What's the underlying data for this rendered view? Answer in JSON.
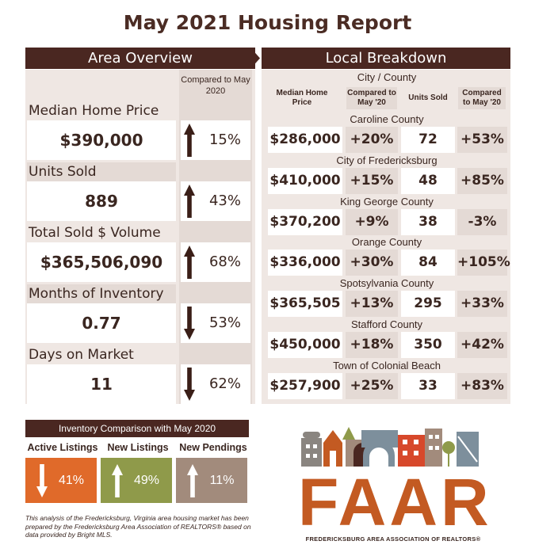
{
  "title": "May 2021 Housing Report",
  "colors": {
    "dark_brown": "#4a2721",
    "panel": "#efe7e3",
    "shade": "#e4dad5",
    "orange": "#e06a2a",
    "olive": "#8f9a4a",
    "taupe": "#a28b7c"
  },
  "area_overview": {
    "header": "Area Overview",
    "compared_label": "Compared to May 2020",
    "metrics": [
      {
        "label": "Median Home Price",
        "value": "$390,000",
        "direction": "up",
        "change": "15%"
      },
      {
        "label": "Units Sold",
        "value": "889",
        "direction": "up",
        "change": "43%"
      },
      {
        "label": "Total Sold $ Volume",
        "value": "$365,506,090",
        "direction": "up",
        "change": "68%"
      },
      {
        "label": "Months of Inventory",
        "value": "0.77",
        "direction": "down",
        "change": "53%"
      },
      {
        "label": "Days on Market",
        "value": "11",
        "direction": "down",
        "change": "62%"
      }
    ]
  },
  "local_breakdown": {
    "header": "Local Breakdown",
    "city_county": "City / County",
    "columns": [
      "Median Home Price",
      "Compared to May '20",
      "Units Sold",
      "Compared to May '20"
    ],
    "rows": [
      {
        "name": "Caroline County",
        "price": "$286,000",
        "price_chg": "+20%",
        "units": "72",
        "units_chg": "+53%"
      },
      {
        "name": "City of Fredericksburg",
        "price": "$410,000",
        "price_chg": "+15%",
        "units": "48",
        "units_chg": "+85%"
      },
      {
        "name": "King George County",
        "price": "$370,200",
        "price_chg": "+9%",
        "units": "38",
        "units_chg": "-3%"
      },
      {
        "name": "Orange County",
        "price": "$336,000",
        "price_chg": "+30%",
        "units": "84",
        "units_chg": "+105%"
      },
      {
        "name": "Spotsylvania County",
        "price": "$365,505",
        "price_chg": "+13%",
        "units": "295",
        "units_chg": "+33%"
      },
      {
        "name": "Stafford County",
        "price": "$450,000",
        "price_chg": "+18%",
        "units": "350",
        "units_chg": "+42%"
      },
      {
        "name": "Town of Colonial Beach",
        "price": "$257,900",
        "price_chg": "+25%",
        "units": "33",
        "units_chg": "+83%"
      }
    ]
  },
  "inventory": {
    "header": "Inventory Comparison with May 2020",
    "items": [
      {
        "label": "Active Listings",
        "direction": "down",
        "change": "41%",
        "color": "#e06a2a"
      },
      {
        "label": "New Listings",
        "direction": "up",
        "change": "49%",
        "color": "#8f9a4a"
      },
      {
        "label": "New Pendings",
        "direction": "up",
        "change": "11%",
        "color": "#a28b7c"
      }
    ]
  },
  "note": "This analysis of the Fredericksburg, Virginia area housing market has been prepared by the Fredericksburg Area Association of REALTORS® based on data provided by Bright MLS.",
  "logo": {
    "letters": "FAAR",
    "subtitle": "FREDERICKSBURG AREA ASSOCIATION OF REALTORS®"
  }
}
